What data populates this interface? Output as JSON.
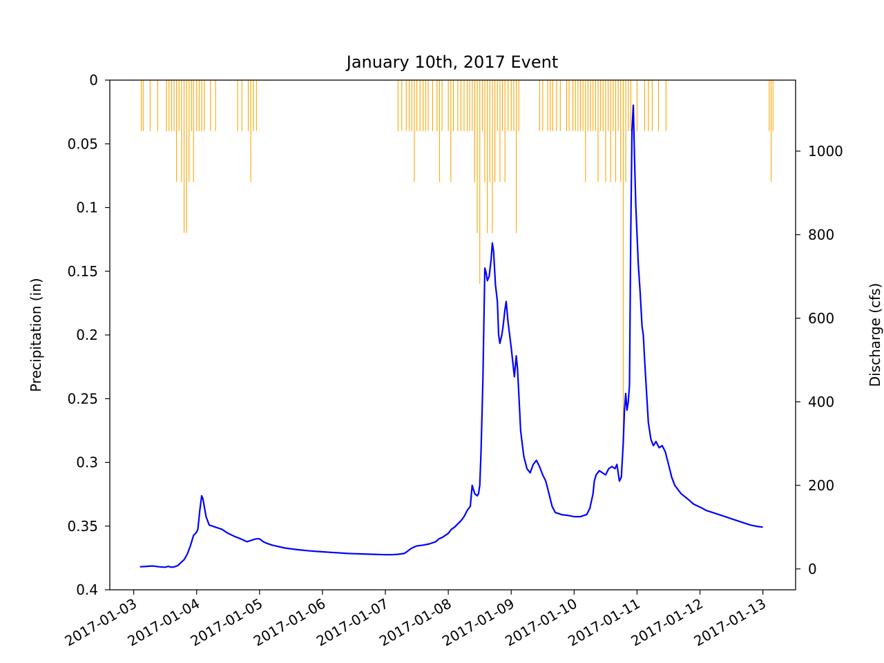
{
  "chart_data": {
    "type": "line",
    "title": "January 10th, 2017 Event",
    "left_axis": {
      "label": "Precipitation (in)",
      "inverted": true,
      "ylim": [
        0,
        0.4
      ],
      "ticks": [
        0,
        0.05,
        0.1,
        0.15,
        0.2,
        0.25,
        0.3,
        0.35,
        0.4
      ],
      "tick_labels": [
        "0",
        "0.05",
        "0.1",
        "0.15",
        "0.2",
        "0.25",
        "0.3",
        "0.35",
        "0.4"
      ]
    },
    "right_axis": {
      "label": "Discharge (cfs)",
      "ylim": [
        -50,
        1170
      ],
      "ticks": [
        0,
        200,
        400,
        600,
        800,
        1000
      ],
      "tick_labels": [
        "0",
        "200",
        "400",
        "600",
        "800",
        "1000"
      ]
    },
    "x_axis": {
      "label": "",
      "xlim_days": [
        -0.38,
        10.52
      ],
      "ticks": [
        0,
        1,
        2,
        3,
        4,
        5,
        6,
        7,
        8,
        9,
        10
      ],
      "tick_labels": [
        "2017-01-03",
        "2017-01-04",
        "2017-01-05",
        "2017-01-06",
        "2017-01-07",
        "2017-01-08",
        "2017-01-09",
        "2017-01-10",
        "2017-01-11",
        "2017-01-12",
        "2017-01-13"
      ]
    },
    "series": [
      {
        "type": "bar",
        "color": "#FFA500",
        "axis": "left",
        "bars": [
          {
            "x": 0.12,
            "value": 0.04
          },
          {
            "x": 0.15,
            "value": 0.04
          },
          {
            "x": 0.26,
            "value": 0.04
          },
          {
            "x": 0.38,
            "value": 0.04
          },
          {
            "x": 0.52,
            "value": 0.04
          },
          {
            "x": 0.56,
            "value": 0.04
          },
          {
            "x": 0.6,
            "value": 0.04
          },
          {
            "x": 0.64,
            "value": 0.04
          },
          {
            "x": 0.68,
            "value": 0.08
          },
          {
            "x": 0.72,
            "value": 0.04
          },
          {
            "x": 0.76,
            "value": 0.08
          },
          {
            "x": 0.8,
            "value": 0.12
          },
          {
            "x": 0.84,
            "value": 0.12
          },
          {
            "x": 0.88,
            "value": 0.08
          },
          {
            "x": 0.92,
            "value": 0.04
          },
          {
            "x": 0.95,
            "value": 0.08
          },
          {
            "x": 1.0,
            "value": 0.04
          },
          {
            "x": 1.04,
            "value": 0.04
          },
          {
            "x": 1.08,
            "value": 0.04
          },
          {
            "x": 1.12,
            "value": 0.04
          },
          {
            "x": 1.22,
            "value": 0.04
          },
          {
            "x": 1.3,
            "value": 0.04
          },
          {
            "x": 1.65,
            "value": 0.04
          },
          {
            "x": 1.72,
            "value": 0.04
          },
          {
            "x": 1.82,
            "value": 0.04
          },
          {
            "x": 1.86,
            "value": 0.08
          },
          {
            "x": 1.9,
            "value": 0.04
          },
          {
            "x": 1.95,
            "value": 0.04
          },
          {
            "x": 4.2,
            "value": 0.04
          },
          {
            "x": 4.26,
            "value": 0.04
          },
          {
            "x": 4.33,
            "value": 0.04
          },
          {
            "x": 4.38,
            "value": 0.04
          },
          {
            "x": 4.42,
            "value": 0.04
          },
          {
            "x": 4.46,
            "value": 0.08
          },
          {
            "x": 4.5,
            "value": 0.04
          },
          {
            "x": 4.55,
            "value": 0.04
          },
          {
            "x": 4.6,
            "value": 0.04
          },
          {
            "x": 4.64,
            "value": 0.04
          },
          {
            "x": 4.68,
            "value": 0.04
          },
          {
            "x": 4.75,
            "value": 0.04
          },
          {
            "x": 4.82,
            "value": 0.04
          },
          {
            "x": 4.86,
            "value": 0.08
          },
          {
            "x": 4.9,
            "value": 0.04
          },
          {
            "x": 5.0,
            "value": 0.04
          },
          {
            "x": 5.04,
            "value": 0.08
          },
          {
            "x": 5.08,
            "value": 0.04
          },
          {
            "x": 5.15,
            "value": 0.04
          },
          {
            "x": 5.2,
            "value": 0.04
          },
          {
            "x": 5.25,
            "value": 0.04
          },
          {
            "x": 5.3,
            "value": 0.04
          },
          {
            "x": 5.34,
            "value": 0.04
          },
          {
            "x": 5.38,
            "value": 0.04
          },
          {
            "x": 5.42,
            "value": 0.08
          },
          {
            "x": 5.46,
            "value": 0.12
          },
          {
            "x": 5.5,
            "value": 0.16
          },
          {
            "x": 5.54,
            "value": 0.04
          },
          {
            "x": 5.58,
            "value": 0.08
          },
          {
            "x": 5.62,
            "value": 0.12
          },
          {
            "x": 5.66,
            "value": 0.08
          },
          {
            "x": 5.7,
            "value": 0.12
          },
          {
            "x": 5.74,
            "value": 0.08
          },
          {
            "x": 5.78,
            "value": 0.04
          },
          {
            "x": 5.82,
            "value": 0.08
          },
          {
            "x": 5.86,
            "value": 0.04
          },
          {
            "x": 5.9,
            "value": 0.08
          },
          {
            "x": 5.95,
            "value": 0.04
          },
          {
            "x": 6.0,
            "value": 0.04
          },
          {
            "x": 6.04,
            "value": 0.04
          },
          {
            "x": 6.08,
            "value": 0.12
          },
          {
            "x": 6.12,
            "value": 0.04
          },
          {
            "x": 6.45,
            "value": 0.04
          },
          {
            "x": 6.5,
            "value": 0.04
          },
          {
            "x": 6.58,
            "value": 0.04
          },
          {
            "x": 6.62,
            "value": 0.04
          },
          {
            "x": 6.66,
            "value": 0.04
          },
          {
            "x": 6.72,
            "value": 0.04
          },
          {
            "x": 6.78,
            "value": 0.04
          },
          {
            "x": 6.88,
            "value": 0.04
          },
          {
            "x": 6.92,
            "value": 0.04
          },
          {
            "x": 6.98,
            "value": 0.04
          },
          {
            "x": 7.02,
            "value": 0.04
          },
          {
            "x": 7.06,
            "value": 0.04
          },
          {
            "x": 7.1,
            "value": 0.04
          },
          {
            "x": 7.14,
            "value": 0.04
          },
          {
            "x": 7.18,
            "value": 0.08
          },
          {
            "x": 7.22,
            "value": 0.04
          },
          {
            "x": 7.26,
            "value": 0.04
          },
          {
            "x": 7.3,
            "value": 0.04
          },
          {
            "x": 7.34,
            "value": 0.04
          },
          {
            "x": 7.38,
            "value": 0.08
          },
          {
            "x": 7.42,
            "value": 0.04
          },
          {
            "x": 7.46,
            "value": 0.04
          },
          {
            "x": 7.5,
            "value": 0.08
          },
          {
            "x": 7.54,
            "value": 0.04
          },
          {
            "x": 7.58,
            "value": 0.08
          },
          {
            "x": 7.62,
            "value": 0.04
          },
          {
            "x": 7.66,
            "value": 0.08
          },
          {
            "x": 7.7,
            "value": 0.04
          },
          {
            "x": 7.74,
            "value": 0.08
          },
          {
            "x": 7.78,
            "value": 0.28
          },
          {
            "x": 7.82,
            "value": 0.08
          },
          {
            "x": 7.86,
            "value": 0.04
          },
          {
            "x": 7.9,
            "value": 0.04
          },
          {
            "x": 8.0,
            "value": 0.04
          },
          {
            "x": 8.12,
            "value": 0.04
          },
          {
            "x": 8.18,
            "value": 0.04
          },
          {
            "x": 8.24,
            "value": 0.04
          },
          {
            "x": 8.34,
            "value": 0.04
          },
          {
            "x": 8.46,
            "value": 0.04
          },
          {
            "x": 10.1,
            "value": 0.04
          },
          {
            "x": 10.13,
            "value": 0.08
          },
          {
            "x": 10.16,
            "value": 0.04
          }
        ]
      },
      {
        "type": "line",
        "color": "#0000FF",
        "axis": "right",
        "points": [
          [
            0.1,
            5
          ],
          [
            0.2,
            6
          ],
          [
            0.3,
            7
          ],
          [
            0.4,
            5
          ],
          [
            0.5,
            4
          ],
          [
            0.55,
            6
          ],
          [
            0.6,
            4
          ],
          [
            0.65,
            5
          ],
          [
            0.7,
            8
          ],
          [
            0.75,
            15
          ],
          [
            0.8,
            22
          ],
          [
            0.85,
            35
          ],
          [
            0.9,
            55
          ],
          [
            0.95,
            80
          ],
          [
            1.0,
            88
          ],
          [
            1.02,
            95
          ],
          [
            1.05,
            140
          ],
          [
            1.08,
            175
          ],
          [
            1.1,
            168
          ],
          [
            1.12,
            150
          ],
          [
            1.15,
            125
          ],
          [
            1.2,
            105
          ],
          [
            1.3,
            100
          ],
          [
            1.4,
            95
          ],
          [
            1.5,
            85
          ],
          [
            1.6,
            78
          ],
          [
            1.7,
            72
          ],
          [
            1.8,
            65
          ],
          [
            1.9,
            70
          ],
          [
            1.95,
            72
          ],
          [
            2.0,
            72
          ],
          [
            2.05,
            66
          ],
          [
            2.1,
            62
          ],
          [
            2.2,
            57
          ],
          [
            2.4,
            50
          ],
          [
            2.6,
            46
          ],
          [
            2.8,
            43
          ],
          [
            3.0,
            41
          ],
          [
            3.2,
            39
          ],
          [
            3.4,
            37
          ],
          [
            3.6,
            36
          ],
          [
            3.8,
            35
          ],
          [
            4.0,
            34
          ],
          [
            4.1,
            34
          ],
          [
            4.2,
            35
          ],
          [
            4.3,
            37
          ],
          [
            4.35,
            42
          ],
          [
            4.4,
            48
          ],
          [
            4.45,
            52
          ],
          [
            4.5,
            55
          ],
          [
            4.6,
            57
          ],
          [
            4.7,
            60
          ],
          [
            4.8,
            65
          ],
          [
            4.85,
            72
          ],
          [
            4.9,
            75
          ],
          [
            5.0,
            85
          ],
          [
            5.05,
            95
          ],
          [
            5.1,
            100
          ],
          [
            5.2,
            115
          ],
          [
            5.25,
            125
          ],
          [
            5.3,
            140
          ],
          [
            5.35,
            150
          ],
          [
            5.38,
            200
          ],
          [
            5.42,
            180
          ],
          [
            5.46,
            175
          ],
          [
            5.48,
            180
          ],
          [
            5.5,
            200
          ],
          [
            5.52,
            280
          ],
          [
            5.55,
            450
          ],
          [
            5.58,
            720
          ],
          [
            5.6,
            710
          ],
          [
            5.62,
            690
          ],
          [
            5.65,
            700
          ],
          [
            5.68,
            740
          ],
          [
            5.7,
            780
          ],
          [
            5.72,
            760
          ],
          [
            5.75,
            680
          ],
          [
            5.78,
            640
          ],
          [
            5.8,
            560
          ],
          [
            5.82,
            540
          ],
          [
            5.85,
            560
          ],
          [
            5.87,
            580
          ],
          [
            5.9,
            620
          ],
          [
            5.92,
            640
          ],
          [
            5.95,
            590
          ],
          [
            6.0,
            530
          ],
          [
            6.05,
            460
          ],
          [
            6.08,
            510
          ],
          [
            6.1,
            480
          ],
          [
            6.12,
            420
          ],
          [
            6.15,
            330
          ],
          [
            6.2,
            270
          ],
          [
            6.25,
            240
          ],
          [
            6.3,
            230
          ],
          [
            6.35,
            250
          ],
          [
            6.4,
            260
          ],
          [
            6.45,
            245
          ],
          [
            6.5,
            225
          ],
          [
            6.55,
            210
          ],
          [
            6.6,
            180
          ],
          [
            6.65,
            150
          ],
          [
            6.7,
            135
          ],
          [
            6.8,
            130
          ],
          [
            6.9,
            128
          ],
          [
            7.0,
            125
          ],
          [
            7.1,
            125
          ],
          [
            7.2,
            130
          ],
          [
            7.25,
            145
          ],
          [
            7.3,
            180
          ],
          [
            7.32,
            210
          ],
          [
            7.35,
            225
          ],
          [
            7.4,
            235
          ],
          [
            7.45,
            230
          ],
          [
            7.5,
            225
          ],
          [
            7.55,
            240
          ],
          [
            7.6,
            245
          ],
          [
            7.65,
            240
          ],
          [
            7.68,
            250
          ],
          [
            7.7,
            230
          ],
          [
            7.72,
            210
          ],
          [
            7.75,
            220
          ],
          [
            7.78,
            300
          ],
          [
            7.8,
            380
          ],
          [
            7.82,
            420
          ],
          [
            7.84,
            380
          ],
          [
            7.86,
            400
          ],
          [
            7.88,
            440
          ],
          [
            7.9,
            800
          ],
          [
            7.92,
            1050
          ],
          [
            7.94,
            1110
          ],
          [
            7.96,
            980
          ],
          [
            7.98,
            870
          ],
          [
            8.0,
            800
          ],
          [
            8.02,
            730
          ],
          [
            8.05,
            660
          ],
          [
            8.08,
            580
          ],
          [
            8.1,
            560
          ],
          [
            8.12,
            500
          ],
          [
            8.14,
            450
          ],
          [
            8.16,
            400
          ],
          [
            8.18,
            350
          ],
          [
            8.22,
            310
          ],
          [
            8.26,
            295
          ],
          [
            8.3,
            305
          ],
          [
            8.35,
            290
          ],
          [
            8.4,
            295
          ],
          [
            8.45,
            280
          ],
          [
            8.5,
            250
          ],
          [
            8.55,
            220
          ],
          [
            8.6,
            200
          ],
          [
            8.7,
            180
          ],
          [
            8.8,
            168
          ],
          [
            8.9,
            155
          ],
          [
            9.0,
            148
          ],
          [
            9.1,
            140
          ],
          [
            9.2,
            135
          ],
          [
            9.3,
            130
          ],
          [
            9.4,
            125
          ],
          [
            9.5,
            120
          ],
          [
            9.6,
            115
          ],
          [
            9.7,
            110
          ],
          [
            9.8,
            105
          ],
          [
            9.9,
            102
          ],
          [
            10.0,
            100
          ]
        ]
      }
    ]
  }
}
